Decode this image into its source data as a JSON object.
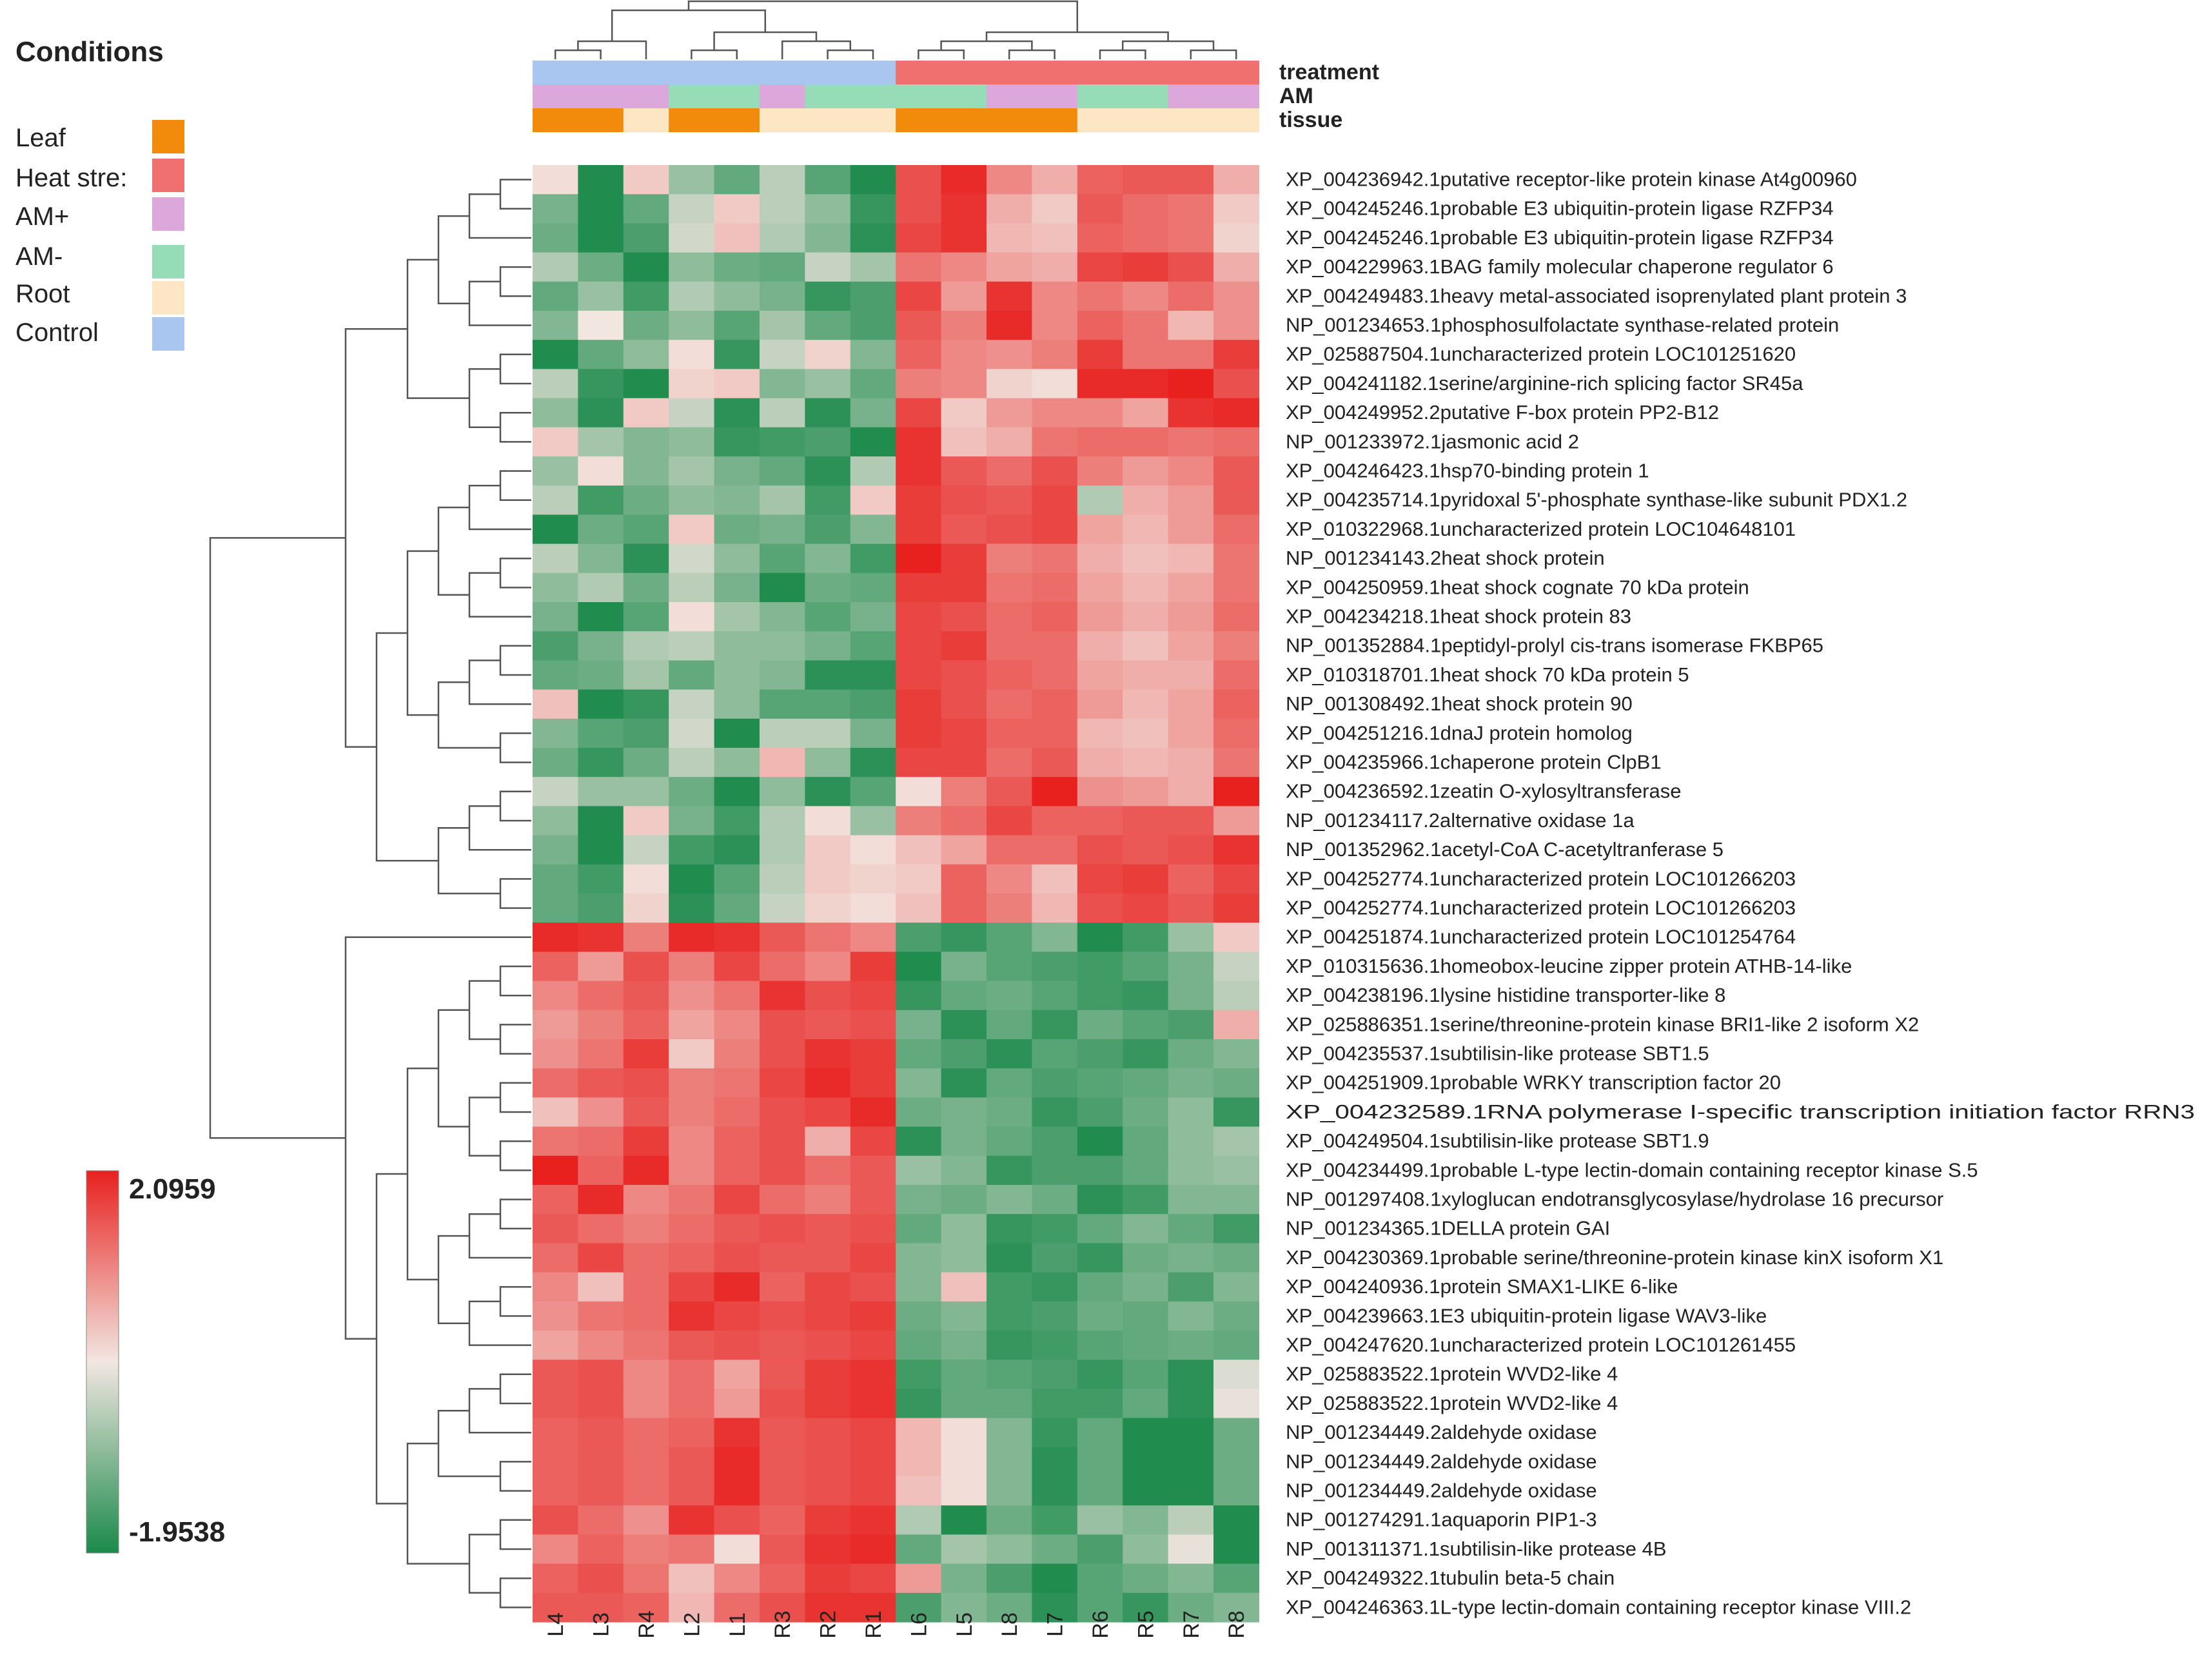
{
  "chart_data": {
    "type": "heatmap",
    "title": "Conditions",
    "scale": {
      "max_label": "2.0959",
      "min_label": "-1.9538",
      "max": 2.0959,
      "min": -1.9538,
      "colors": {
        "high": "#e8211f",
        "mid": "#f2e6e1",
        "low": "#1a8a4a"
      }
    },
    "legend": [
      {
        "label": "Leaf",
        "color": "#f28a0c"
      },
      {
        "label": "Heat stre:",
        "color": "#f07070"
      },
      {
        "label": "AM+",
        "color": "#dca8dc"
      },
      {
        "label": "AM-",
        "color": "#96dcb6"
      },
      {
        "label": "Root",
        "color": "#fce6c4"
      },
      {
        "label": "Control",
        "color": "#a8c6ef"
      }
    ],
    "annotation_tracks": [
      {
        "name": "treatment",
        "values": [
          "Control",
          "Control",
          "Control",
          "Control",
          "Control",
          "Control",
          "Control",
          "Control",
          "Heat stress",
          "Heat stress",
          "Heat stress",
          "Heat stress",
          "Heat stress",
          "Heat stress",
          "Heat stress",
          "Heat stress"
        ]
      },
      {
        "name": "AM",
        "values": [
          "AM+",
          "AM+",
          "AM+",
          "AM-",
          "AM-",
          "AM+",
          "AM-",
          "AM-",
          "AM-",
          "AM-",
          "AM+",
          "AM+",
          "AM-",
          "AM-",
          "AM+",
          "AM+"
        ]
      },
      {
        "name": "tissue",
        "values": [
          "Leaf",
          "Leaf",
          "Root",
          "Leaf",
          "Leaf",
          "Root",
          "Root",
          "Root",
          "Leaf",
          "Leaf",
          "Leaf",
          "Leaf",
          "Root",
          "Root",
          "Root",
          "Root"
        ]
      }
    ],
    "columns": [
      "L4",
      "L3",
      "R4",
      "L2",
      "L1",
      "R3",
      "R2",
      "R1",
      "L6",
      "L5",
      "L8",
      "L7",
      "R6",
      "R5",
      "R7",
      "R8"
    ],
    "rows": [
      "XP_004236942.1putative receptor-like protein kinase At4g00960",
      "XP_004245246.1probable E3 ubiquitin-protein ligase RZFP34",
      "XP_004245246.1probable E3 ubiquitin-protein ligase RZFP34",
      "XP_004229963.1BAG family molecular chaperone regulator 6",
      "XP_004249483.1heavy metal-associated isoprenylated plant protein 3",
      "NP_001234653.1phosphosulfolactate synthase-related protein",
      "XP_025887504.1uncharacterized protein LOC101251620",
      "XP_004241182.1serine/arginine-rich splicing factor SR45a",
      "XP_004249952.2putative F-box protein PP2-B12",
      "NP_001233972.1jasmonic acid 2",
      "XP_004246423.1hsp70-binding protein 1",
      "XP_004235714.1pyridoxal 5'-phosphate synthase-like subunit PDX1.2",
      "XP_010322968.1uncharacterized protein LOC104648101",
      "NP_001234143.2heat shock protein",
      "XP_004250959.1heat shock cognate 70 kDa protein",
      "XP_004234218.1heat shock protein 83",
      "NP_001352884.1peptidyl-prolyl cis-trans isomerase FKBP65",
      "XP_010318701.1heat shock 70 kDa protein 5",
      "NP_001308492.1heat shock protein 90",
      "XP_004251216.1dnaJ protein homolog",
      "XP_004235966.1chaperone protein ClpB1",
      "XP_004236592.1zeatin O-xylosyltransferase",
      "NP_001234117.2alternative oxidase 1a",
      "NP_001352962.1acetyl-CoA C-acetyltranferase 5",
      "XP_004252774.1uncharacterized protein LOC101266203",
      "XP_004252774.1uncharacterized protein LOC101266203",
      "XP_004251874.1uncharacterized protein LOC101254764",
      "XP_010315636.1homeobox-leucine zipper protein ATHB-14-like",
      "XP_004238196.1lysine histidine transporter-like 8",
      "XP_025886351.1serine/threonine-protein kinase BRI1-like 2 isoform X2",
      "XP_004235537.1subtilisin-like protease SBT1.5",
      "XP_004251909.1probable WRKY transcription factor 20",
      "XP_004232589.1RNA polymerase I-specific transcription initiation factor RRN3",
      "XP_004249504.1subtilisin-like protease SBT1.9",
      "XP_004234499.1probable L-type lectin-domain containing receptor kinase S.5",
      "NP_001297408.1xyloglucan endotransglycosylase/hydrolase 16 precursor",
      "NP_001234365.1DELLA protein GAI",
      "XP_004230369.1probable serine/threonine-protein kinase kinX isoform X1",
      "XP_004240936.1protein SMAX1-LIKE 6-like",
      "XP_004239663.1E3 ubiquitin-protein ligase WAV3-like",
      "XP_004247620.1uncharacterized protein LOC101261455",
      "XP_025883522.1protein WVD2-like 4",
      "XP_025883522.1protein WVD2-like 4",
      "NP_001234449.2aldehyde oxidase",
      "NP_001234449.2aldehyde oxidase",
      "NP_001234449.2aldehyde oxidase",
      "NP_001274291.1aquaporin PIP1-3",
      "NP_001311371.1subtilisin-like protease 4B",
      "XP_004249322.1tubulin beta-5 chain",
      "XP_004246363.1L-type lectin-domain containing receptor kinase VIII.2"
    ],
    "values": [
      [
        0.1,
        -1.9,
        0.3,
        -0.8,
        -1.3,
        -0.5,
        -1.4,
        -1.9,
        1.6,
        2.0,
        1.0,
        0.6,
        1.4,
        1.5,
        1.5,
        0.6
      ],
      [
        -1.1,
        -1.9,
        -1.3,
        -0.4,
        0.3,
        -0.5,
        -0.9,
        -1.7,
        1.6,
        1.9,
        0.6,
        0.3,
        1.5,
        1.3,
        1.2,
        0.3
      ],
      [
        -1.2,
        -1.9,
        -1.5,
        -0.3,
        0.4,
        -0.6,
        -1.0,
        -1.8,
        1.7,
        1.9,
        0.5,
        0.4,
        1.4,
        1.3,
        1.2,
        0.2
      ],
      [
        -0.6,
        -1.2,
        -1.9,
        -0.9,
        -1.2,
        -1.3,
        -0.4,
        -0.7,
        1.2,
        1.0,
        0.7,
        0.6,
        1.7,
        1.8,
        1.6,
        0.6
      ],
      [
        -1.3,
        -0.8,
        -1.6,
        -0.6,
        -0.9,
        -1.1,
        -1.7,
        -1.5,
        1.7,
        0.8,
        1.9,
        1.0,
        1.2,
        1.0,
        1.3,
        0.9
      ],
      [
        -1.0,
        0.0,
        -1.2,
        -0.9,
        -1.4,
        -0.7,
        -1.3,
        -1.5,
        1.5,
        1.1,
        2.0,
        1.0,
        1.4,
        1.2,
        0.5,
        0.9
      ],
      [
        -1.9,
        -1.3,
        -0.9,
        0.1,
        -1.7,
        -0.4,
        0.2,
        -1.0,
        1.4,
        1.0,
        0.9,
        1.1,
        1.8,
        1.2,
        1.2,
        1.8
      ],
      [
        -0.5,
        -1.7,
        -1.9,
        0.2,
        0.3,
        -1.0,
        -0.8,
        -1.3,
        1.1,
        1.0,
        0.2,
        0.1,
        2.0,
        2.0,
        2.1,
        1.6
      ],
      [
        -0.9,
        -1.8,
        0.3,
        -0.4,
        -1.8,
        -0.5,
        -1.8,
        -1.1,
        1.7,
        0.3,
        0.8,
        1.0,
        1.0,
        0.7,
        1.9,
        2.0
      ],
      [
        0.3,
        -0.7,
        -1.0,
        -0.9,
        -1.7,
        -1.6,
        -1.5,
        -1.9,
        1.9,
        0.4,
        0.6,
        1.2,
        1.3,
        1.3,
        1.2,
        1.3
      ],
      [
        -0.8,
        0.1,
        -1.0,
        -0.7,
        -1.1,
        -1.3,
        -1.8,
        -0.6,
        1.9,
        1.5,
        1.3,
        1.6,
        1.1,
        0.8,
        1.0,
        1.5
      ],
      [
        -0.5,
        -1.6,
        -1.2,
        -0.9,
        -1.0,
        -0.7,
        -1.6,
        0.3,
        1.8,
        1.6,
        1.5,
        1.7,
        -0.6,
        0.6,
        0.8,
        1.5
      ],
      [
        -1.9,
        -1.2,
        -1.4,
        0.3,
        -1.2,
        -1.1,
        -1.5,
        -1.0,
        1.8,
        1.5,
        1.6,
        1.7,
        0.7,
        0.5,
        0.8,
        1.3
      ],
      [
        -0.5,
        -1.0,
        -1.8,
        -0.3,
        -0.9,
        -1.4,
        -1.0,
        -1.6,
        2.1,
        1.8,
        1.1,
        1.2,
        0.6,
        0.4,
        0.5,
        1.2
      ],
      [
        -0.9,
        -0.6,
        -1.2,
        -0.5,
        -1.1,
        -1.9,
        -1.2,
        -1.3,
        1.8,
        1.8,
        1.2,
        1.3,
        0.7,
        0.5,
        0.7,
        1.2
      ],
      [
        -1.1,
        -1.9,
        -1.4,
        0.1,
        -0.7,
        -1.0,
        -1.4,
        -1.1,
        1.7,
        1.6,
        1.3,
        1.4,
        0.8,
        0.6,
        0.8,
        1.3
      ],
      [
        -1.5,
        -1.1,
        -0.6,
        -0.5,
        -0.9,
        -0.9,
        -1.1,
        -1.4,
        1.7,
        1.8,
        1.3,
        1.3,
        0.6,
        0.4,
        0.7,
        1.1
      ],
      [
        -1.3,
        -1.2,
        -0.7,
        -1.3,
        -0.9,
        -1.0,
        -1.8,
        -1.8,
        1.7,
        1.6,
        1.4,
        1.3,
        0.7,
        0.6,
        0.6,
        1.3
      ],
      [
        0.4,
        -1.9,
        -1.7,
        -0.4,
        -0.9,
        -1.4,
        -1.4,
        -1.5,
        1.8,
        1.6,
        1.3,
        1.4,
        0.8,
        0.5,
        0.7,
        1.4
      ],
      [
        -1.0,
        -1.4,
        -1.5,
        -0.3,
        -1.9,
        -0.5,
        -0.5,
        -1.1,
        1.8,
        1.7,
        1.4,
        1.4,
        0.5,
        0.4,
        0.7,
        1.3
      ],
      [
        -1.2,
        -1.7,
        -1.2,
        -0.5,
        -0.9,
        0.5,
        -0.9,
        -1.8,
        1.7,
        1.7,
        1.3,
        1.5,
        0.6,
        0.5,
        0.6,
        1.2
      ],
      [
        -0.4,
        -0.8,
        -0.8,
        -1.2,
        -1.9,
        -0.9,
        -1.8,
        -1.4,
        0.1,
        1.1,
        1.5,
        2.1,
        0.9,
        0.8,
        0.6,
        2.1
      ],
      [
        -0.9,
        -1.9,
        0.3,
        -1.1,
        -1.6,
        -0.6,
        0.1,
        -0.8,
        1.1,
        1.3,
        1.7,
        1.4,
        1.4,
        1.5,
        1.5,
        0.8
      ],
      [
        -1.1,
        -1.9,
        -0.4,
        -1.6,
        -1.8,
        -0.6,
        0.3,
        0.1,
        0.4,
        0.7,
        1.3,
        1.3,
        1.6,
        1.5,
        1.6,
        1.9
      ],
      [
        -1.3,
        -1.6,
        0.1,
        -1.9,
        -1.4,
        -0.5,
        0.3,
        0.2,
        0.3,
        1.4,
        1.0,
        0.4,
        1.7,
        1.8,
        1.4,
        1.7
      ],
      [
        -1.3,
        -1.5,
        0.2,
        -1.8,
        -1.3,
        -0.4,
        0.2,
        0.1,
        0.4,
        1.4,
        1.1,
        0.5,
        1.6,
        1.7,
        1.5,
        1.8
      ],
      [
        2.0,
        1.9,
        1.1,
        2.0,
        1.9,
        1.5,
        1.2,
        1.0,
        -1.5,
        -1.7,
        -1.4,
        -1.0,
        -1.9,
        -1.6,
        -0.8,
        0.3
      ],
      [
        1.4,
        0.8,
        1.6,
        1.1,
        1.7,
        1.3,
        1.0,
        1.8,
        -1.9,
        -1.1,
        -1.4,
        -1.5,
        -1.6,
        -1.4,
        -1.1,
        -0.4
      ],
      [
        1.0,
        1.3,
        1.5,
        0.9,
        1.2,
        1.9,
        1.6,
        1.7,
        -1.7,
        -1.3,
        -1.2,
        -1.4,
        -1.6,
        -1.7,
        -1.1,
        -0.5
      ],
      [
        0.8,
        1.1,
        1.4,
        0.7,
        1.0,
        1.6,
        1.5,
        1.6,
        -1.1,
        -1.8,
        -1.3,
        -1.7,
        -1.2,
        -1.4,
        -1.5,
        0.6
      ],
      [
        0.9,
        1.2,
        1.8,
        0.3,
        1.1,
        1.6,
        1.9,
        1.8,
        -1.3,
        -1.5,
        -1.8,
        -1.4,
        -1.5,
        -1.7,
        -1.2,
        -1.0
      ],
      [
        1.3,
        1.5,
        1.6,
        1.1,
        1.2,
        1.7,
        2.0,
        1.8,
        -1.0,
        -1.8,
        -1.3,
        -1.5,
        -1.4,
        -1.3,
        -1.1,
        -1.2
      ],
      [
        0.4,
        0.9,
        1.5,
        1.1,
        1.3,
        1.6,
        1.7,
        2.0,
        -1.2,
        -1.1,
        -1.2,
        -1.7,
        -1.5,
        -1.2,
        -0.9,
        -1.7
      ],
      [
        1.2,
        1.3,
        1.8,
        1.0,
        1.4,
        1.6,
        0.6,
        1.7,
        -1.8,
        -1.1,
        -1.3,
        -1.5,
        -1.9,
        -1.3,
        -0.9,
        -0.7
      ],
      [
        2.1,
        1.4,
        2.0,
        1.0,
        1.4,
        1.6,
        1.3,
        1.5,
        -0.8,
        -1.0,
        -1.7,
        -1.5,
        -1.5,
        -1.3,
        -0.9,
        -0.8
      ],
      [
        1.4,
        2.0,
        1.0,
        1.2,
        1.7,
        1.3,
        1.1,
        1.5,
        -1.1,
        -1.2,
        -1.0,
        -1.2,
        -1.8,
        -1.6,
        -1.0,
        -1.0
      ],
      [
        1.5,
        1.3,
        1.1,
        1.3,
        1.5,
        1.6,
        1.5,
        1.6,
        -1.3,
        -0.9,
        -1.7,
        -1.6,
        -1.3,
        -1.0,
        -1.3,
        -1.6
      ],
      [
        1.3,
        1.7,
        1.3,
        1.4,
        1.6,
        1.5,
        1.5,
        1.7,
        -1.0,
        -0.9,
        -1.8,
        -1.5,
        -1.7,
        -1.2,
        -1.1,
        -1.2
      ],
      [
        1.0,
        0.4,
        1.3,
        1.7,
        2.0,
        1.4,
        1.7,
        1.6,
        -1.0,
        0.4,
        -1.6,
        -1.7,
        -1.3,
        -1.1,
        -1.5,
        -1.0
      ],
      [
        0.9,
        1.2,
        1.3,
        1.9,
        1.7,
        1.6,
        1.7,
        1.8,
        -1.2,
        -1.0,
        -1.6,
        -1.5,
        -1.2,
        -1.3,
        -1.0,
        -1.2
      ],
      [
        0.7,
        1.0,
        1.2,
        1.5,
        1.6,
        1.5,
        1.6,
        1.7,
        -1.3,
        -1.1,
        -1.7,
        -1.6,
        -1.4,
        -1.3,
        -1.2,
        -1.3
      ],
      [
        1.5,
        1.6,
        1.0,
        1.3,
        0.7,
        1.5,
        1.8,
        1.9,
        -1.6,
        -1.3,
        -1.4,
        -1.5,
        -1.7,
        -1.4,
        -1.8,
        -0.2
      ],
      [
        1.5,
        1.6,
        1.0,
        1.3,
        0.8,
        1.6,
        1.8,
        1.9,
        -1.7,
        -1.3,
        -1.3,
        -1.6,
        -1.6,
        -1.3,
        -1.8,
        -0.1
      ],
      [
        1.4,
        1.5,
        1.3,
        1.4,
        1.9,
        1.5,
        1.6,
        1.7,
        0.5,
        0.1,
        -1.0,
        -1.7,
        -1.3,
        -1.9,
        -1.9,
        -1.2
      ],
      [
        1.4,
        1.5,
        1.3,
        1.5,
        2.0,
        1.5,
        1.6,
        1.7,
        0.5,
        0.1,
        -1.0,
        -1.8,
        -1.3,
        -1.9,
        -1.9,
        -1.2
      ],
      [
        1.4,
        1.5,
        1.3,
        1.5,
        2.0,
        1.5,
        1.6,
        1.7,
        0.4,
        0.1,
        -1.0,
        -1.8,
        -1.3,
        -1.9,
        -1.9,
        -1.2
      ],
      [
        1.6,
        1.3,
        0.9,
        1.9,
        1.6,
        1.4,
        1.8,
        1.9,
        -0.6,
        -1.9,
        -1.2,
        -1.6,
        -0.8,
        -1.0,
        -0.5,
        -1.9
      ],
      [
        1.0,
        1.4,
        1.1,
        1.2,
        0.1,
        1.5,
        1.9,
        2.0,
        -1.3,
        -0.7,
        -0.9,
        -1.2,
        -1.5,
        -0.9,
        -0.1,
        -1.9
      ],
      [
        1.4,
        1.6,
        1.2,
        0.4,
        1.0,
        1.4,
        1.8,
        1.7,
        0.8,
        -1.1,
        -1.5,
        -1.9,
        -1.4,
        -1.2,
        -1.0,
        -1.4
      ],
      [
        1.5,
        1.5,
        1.4,
        0.5,
        1.3,
        1.6,
        1.9,
        1.9,
        -1.5,
        -1.0,
        -1.2,
        -1.8,
        -1.4,
        -1.7,
        -1.2,
        -1.0
      ]
    ]
  }
}
